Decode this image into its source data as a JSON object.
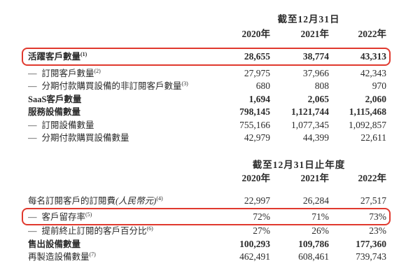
{
  "colors": {
    "highlight_red": "#e0392e",
    "text": "#2b2b2b",
    "background": "#ffffff"
  },
  "glyphs": {
    "dash": "—"
  },
  "sections": [
    {
      "header": "截至12月31日",
      "years": [
        "2020年",
        "2021年",
        "2022年"
      ],
      "rows": [
        {
          "label": "活躍客戶數量",
          "sup": "(1)",
          "dash": false,
          "bold": true,
          "highlight": true,
          "values": [
            "28,655",
            "38,774",
            "43,313"
          ]
        },
        {
          "label": "訂閱客戶數量",
          "sup": "(2)",
          "dash": true,
          "bold": false,
          "highlight": false,
          "values": [
            "27,975",
            "37,966",
            "42,343"
          ]
        },
        {
          "label": "分期付款購買設備的非訂閱客戶數量",
          "sup": "(3)",
          "dash": true,
          "bold": false,
          "highlight": false,
          "values": [
            "680",
            "808",
            "970"
          ]
        },
        {
          "label": "SaaS客戶數量",
          "sup": "",
          "dash": false,
          "bold": true,
          "highlight": false,
          "values": [
            "1,694",
            "2,065",
            "2,060"
          ]
        },
        {
          "label": "服務設備數量",
          "sup": "",
          "dash": false,
          "bold": true,
          "highlight": false,
          "values": [
            "798,145",
            "1,121,744",
            "1,115,468"
          ]
        },
        {
          "label": "訂閱設備數量",
          "sup": "",
          "dash": true,
          "bold": false,
          "highlight": false,
          "values": [
            "755,166",
            "1,077,345",
            "1,092,857"
          ]
        },
        {
          "label": "分期付款購買設備數量",
          "sup": "",
          "dash": true,
          "bold": false,
          "highlight": false,
          "values": [
            "42,979",
            "44,399",
            "22,611"
          ]
        }
      ]
    },
    {
      "header": "截至12月31日止年度",
      "years": [
        "2020年",
        "2021年",
        "2022年"
      ],
      "rows": [
        {
          "label": "每名訂閱客戶的訂閱費",
          "label_italic": "(人民幣元)",
          "sup": "(4)",
          "dash": false,
          "bold": false,
          "highlight": false,
          "values": [
            "22,997",
            "26,284",
            "27,517"
          ]
        },
        {
          "label": "客戶留存率",
          "sup": "(5)",
          "dash": true,
          "bold": false,
          "highlight": true,
          "values": [
            "72%",
            "71%",
            "73%"
          ]
        },
        {
          "label": "提前終止訂閱的客戶百分比",
          "sup": "(6)",
          "dash": true,
          "bold": false,
          "highlight": false,
          "values": [
            "27%",
            "26%",
            "23%"
          ]
        },
        {
          "label": "售出設備數量",
          "sup": "",
          "dash": false,
          "bold": true,
          "highlight": false,
          "values": [
            "100,293",
            "109,786",
            "177,360"
          ]
        },
        {
          "label": "再製造設備數量",
          "sup": "(7)",
          "dash": false,
          "bold": false,
          "highlight": false,
          "values": [
            "462,491",
            "608,461",
            "739,743"
          ]
        }
      ]
    }
  ]
}
